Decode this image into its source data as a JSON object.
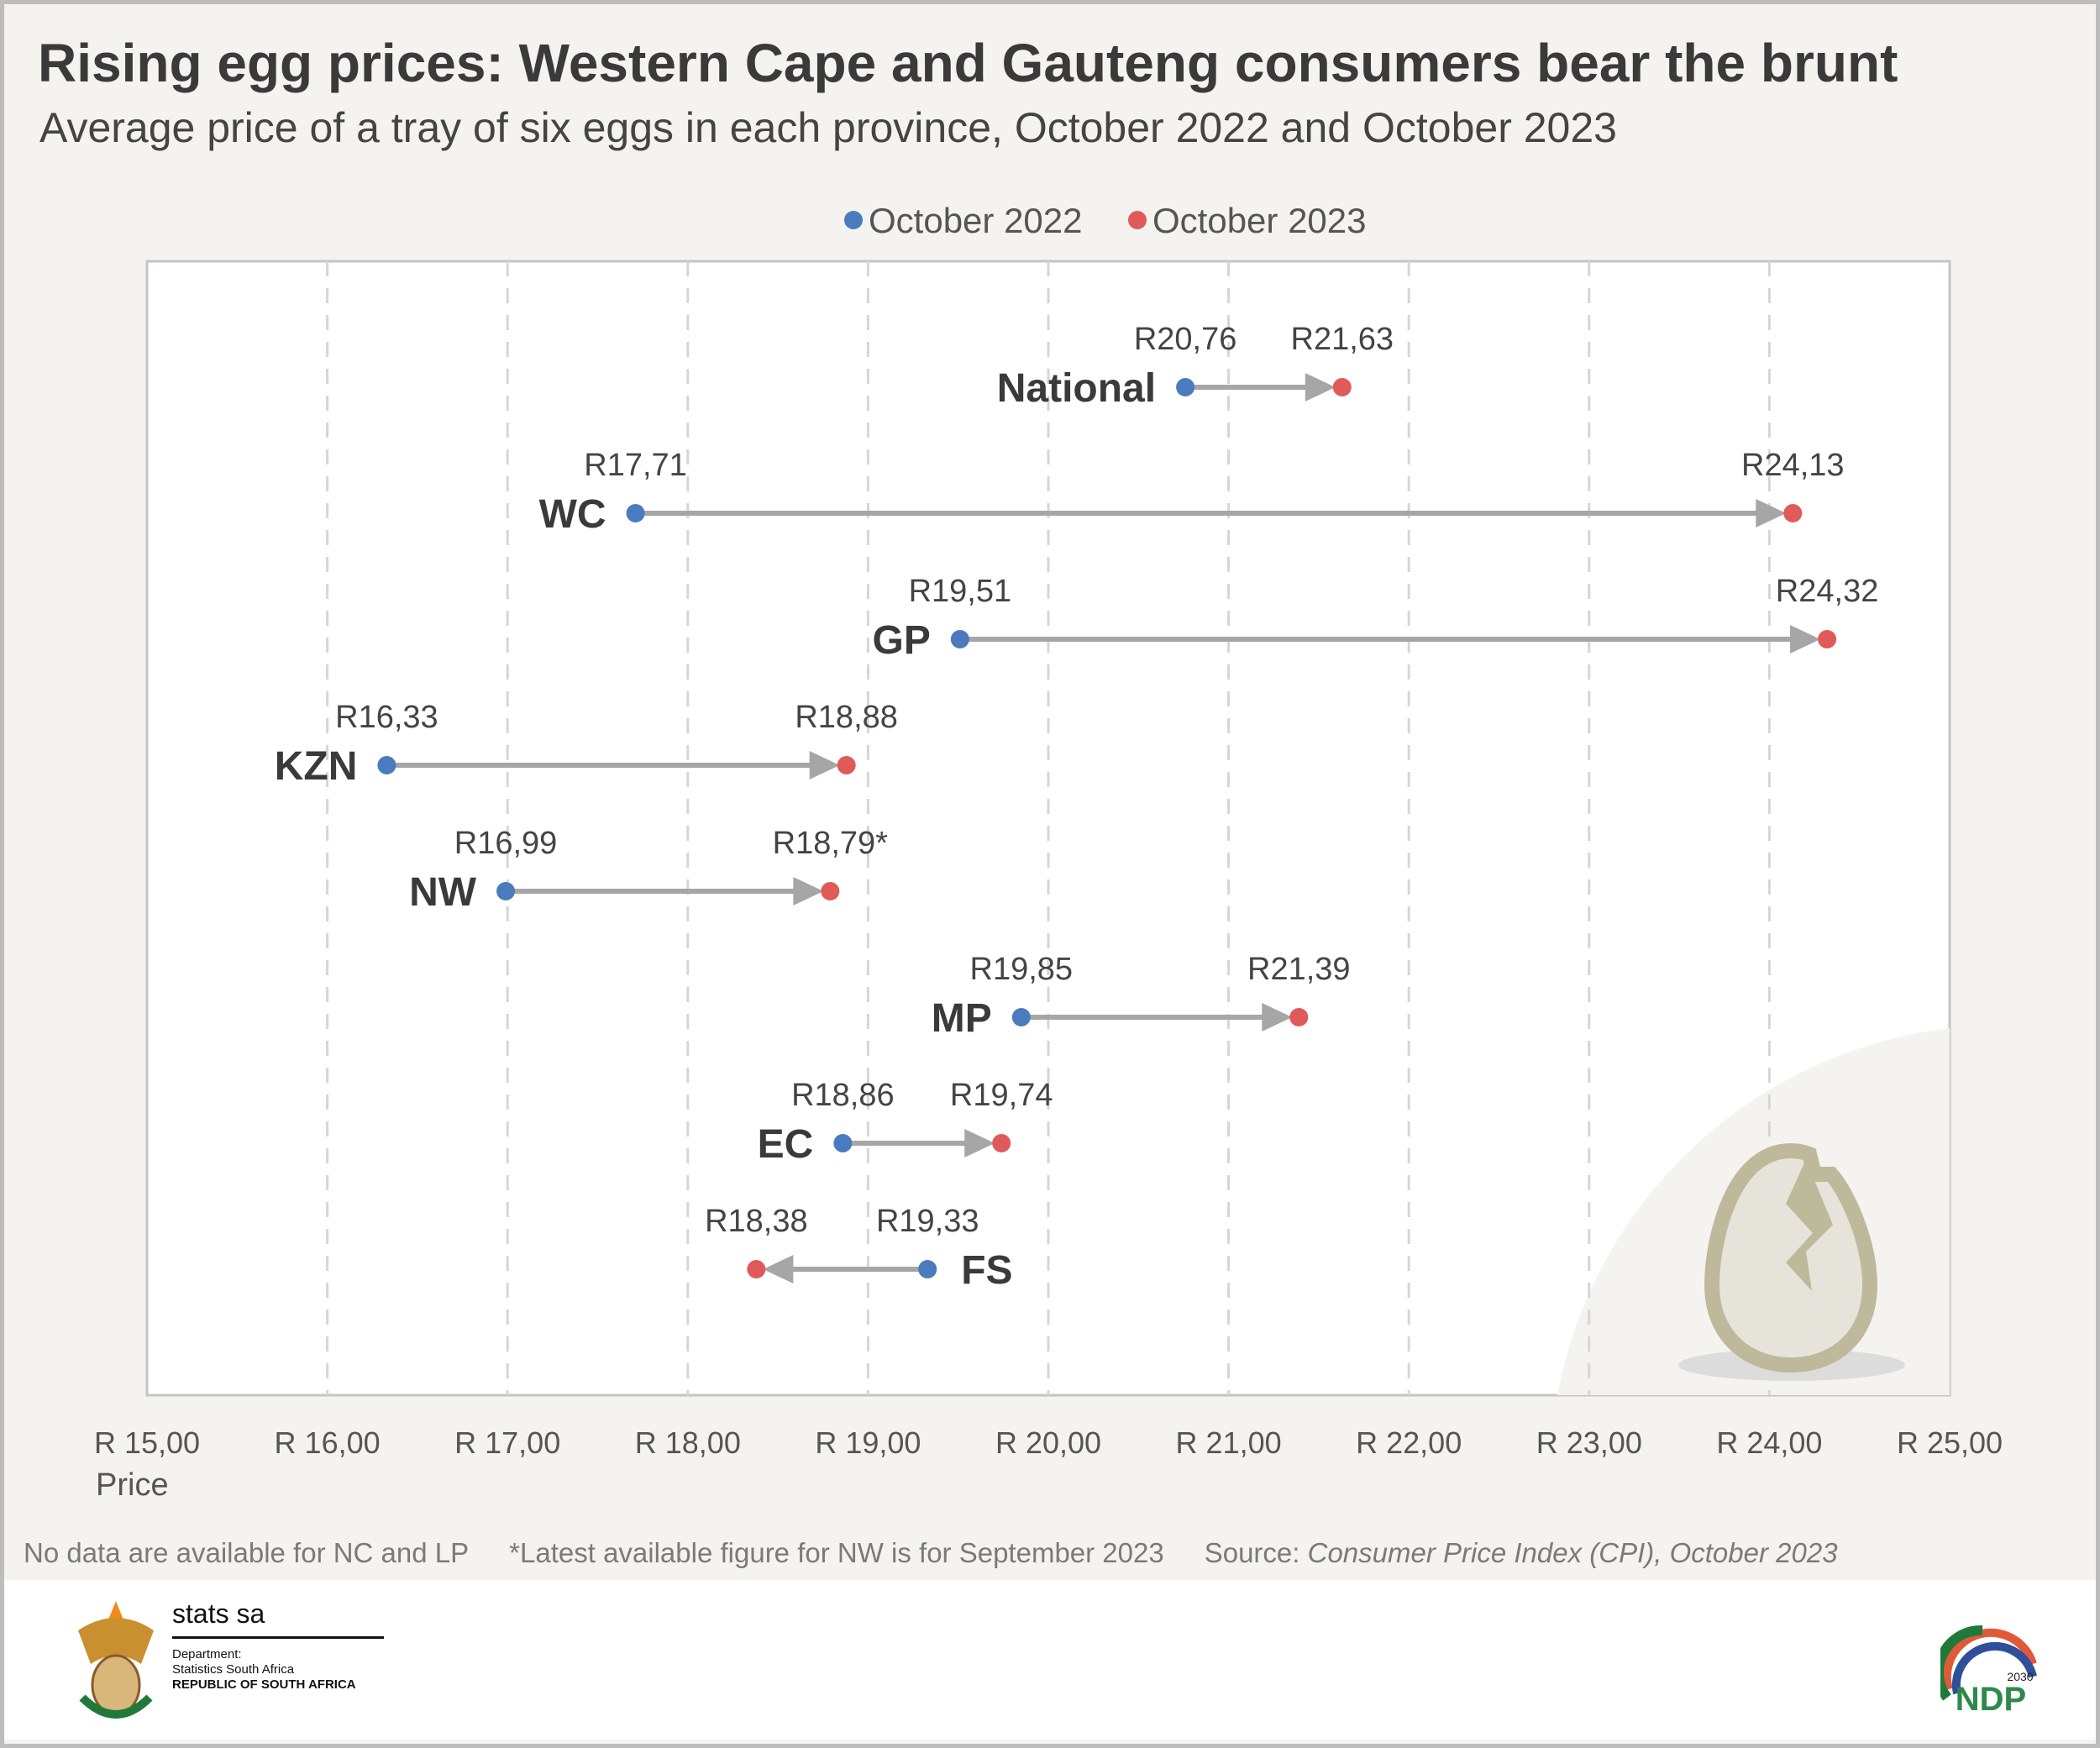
{
  "chart_data": {
    "type": "dumbbell",
    "title": "Rising egg prices: Western Cape and Gauteng consumers bear the brunt",
    "subtitle": "Average price of a tray of six eggs in each province, October 2022 and October 2023",
    "xlabel": "Price",
    "xlim": [
      15,
      25
    ],
    "x_ticks": [
      "R 15,00",
      "R 16,00",
      "R 17,00",
      "R 18,00",
      "R 19,00",
      "R 20,00",
      "R 21,00",
      "R 22,00",
      "R 23,00",
      "R 24,00",
      "R 25,00"
    ],
    "grid": "vertical dashed",
    "legend_placement": "top-center",
    "series": [
      {
        "name": "October 2022",
        "color": "#4a7bbf"
      },
      {
        "name": "October 2023",
        "color": "#e05a5a"
      }
    ],
    "categories": [
      "National",
      "WC",
      "GP",
      "KZN",
      "NW",
      "MP",
      "EC",
      "FS"
    ],
    "values_2022": [
      20.76,
      17.71,
      19.51,
      16.33,
      16.99,
      19.85,
      18.86,
      19.33
    ],
    "values_2023": [
      21.63,
      24.13,
      24.32,
      18.88,
      18.79,
      21.39,
      19.74,
      18.38
    ],
    "labels_2022": [
      "R20,76",
      "R17,71",
      "R19,51",
      "R16,33",
      "R16,99",
      "R19,85",
      "R18,86",
      "R19,33"
    ],
    "labels_2023": [
      "R21,63",
      "R24,13",
      "R24,32",
      "R18,88",
      "R18,79*",
      "R21,39",
      "R19,74",
      "R18,38"
    ]
  },
  "notes": {
    "no_data": "No data are available for NC and LP",
    "nw_note": "*Latest available figure for NW is for September 2023",
    "source_label": "Source: ",
    "source_text": "Consumer Price Index (CPI), October 2023"
  },
  "footer": {
    "brand": "stats sa",
    "dept_line1": "Department:",
    "dept_line2": "Statistics South Africa",
    "dept_line3": "REPUBLIC OF SOUTH AFRICA",
    "ndp_text": "NDP",
    "ndp_year": "2030"
  },
  "colors": {
    "arrow": "#a6a6a6",
    "egg_outline": "#bfb99b",
    "egg_fill": "#e6e4da",
    "background": "#f4f3ef"
  }
}
